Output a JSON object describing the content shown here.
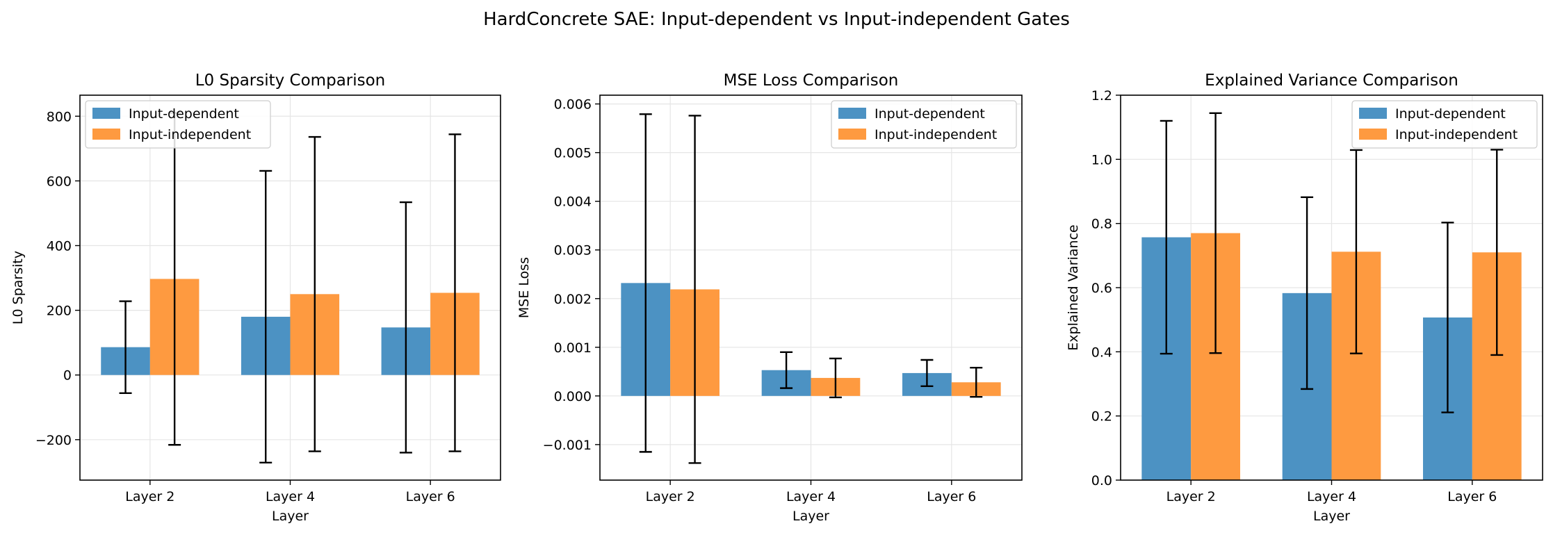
{
  "figure_title": "HardConcrete SAE: Input-dependent vs Input-independent Gates",
  "colors": {
    "series_a": "#4c92c3",
    "series_b": "#fe9a40",
    "errorbar": "#000000",
    "grid": "#e5e5e5"
  },
  "chart_data": [
    {
      "type": "bar",
      "title": "L0 Sparsity Comparison",
      "xlabel": "Layer",
      "ylabel": "L0 Sparsity",
      "categories": [
        "Layer 2",
        "Layer 4",
        "Layer 6"
      ],
      "ylim": [
        -325,
        865
      ],
      "yticks": [
        -200,
        0,
        200,
        400,
        600,
        800
      ],
      "ytick_labels": [
        "−200",
        "0",
        "200",
        "400",
        "600",
        "800"
      ],
      "grid": true,
      "legend": "upper-left",
      "series": [
        {
          "name": "Input-dependent",
          "values": [
            86,
            180,
            147
          ],
          "errors": [
            142,
            451,
            387
          ]
        },
        {
          "name": "Input-independent",
          "values": [
            297,
            250,
            254
          ],
          "errors": [
            513,
            486,
            490
          ]
        }
      ]
    },
    {
      "type": "bar",
      "title": "MSE Loss Comparison",
      "xlabel": "Layer",
      "ylabel": "MSE Loss",
      "categories": [
        "Layer 2",
        "Layer 4",
        "Layer 6"
      ],
      "ylim": [
        -0.00173,
        0.00618
      ],
      "yticks": [
        -0.001,
        0.0,
        0.001,
        0.002,
        0.003,
        0.004,
        0.005,
        0.006
      ],
      "ytick_labels": [
        "−0.001",
        "0.000",
        "0.001",
        "0.002",
        "0.003",
        "0.004",
        "0.005",
        "0.006"
      ],
      "grid": true,
      "legend": "upper-right",
      "series": [
        {
          "name": "Input-dependent",
          "values": [
            0.00232,
            0.00053,
            0.00047
          ],
          "errors": [
            0.00347,
            0.00037,
            0.00027
          ]
        },
        {
          "name": "Input-independent",
          "values": [
            0.00219,
            0.00037,
            0.00028
          ],
          "errors": [
            0.00357,
            0.0004,
            0.0003
          ]
        }
      ]
    },
    {
      "type": "bar",
      "title": "Explained Variance Comparison",
      "xlabel": "Layer",
      "ylabel": "Explained Variance",
      "categories": [
        "Layer 2",
        "Layer 4",
        "Layer 6"
      ],
      "ylim": [
        0,
        1.2
      ],
      "yticks": [
        0.0,
        0.2,
        0.4,
        0.6,
        0.8,
        1.0,
        1.2
      ],
      "ytick_labels": [
        "0.0",
        "0.2",
        "0.4",
        "0.6",
        "0.8",
        "1.0",
        "1.2"
      ],
      "grid": true,
      "legend": "upper-right",
      "series": [
        {
          "name": "Input-dependent",
          "values": [
            0.757,
            0.583,
            0.507
          ],
          "errors": [
            0.363,
            0.299,
            0.296
          ]
        },
        {
          "name": "Input-independent",
          "values": [
            0.77,
            0.712,
            0.71
          ],
          "errors": [
            0.374,
            0.317,
            0.32
          ]
        }
      ]
    }
  ]
}
